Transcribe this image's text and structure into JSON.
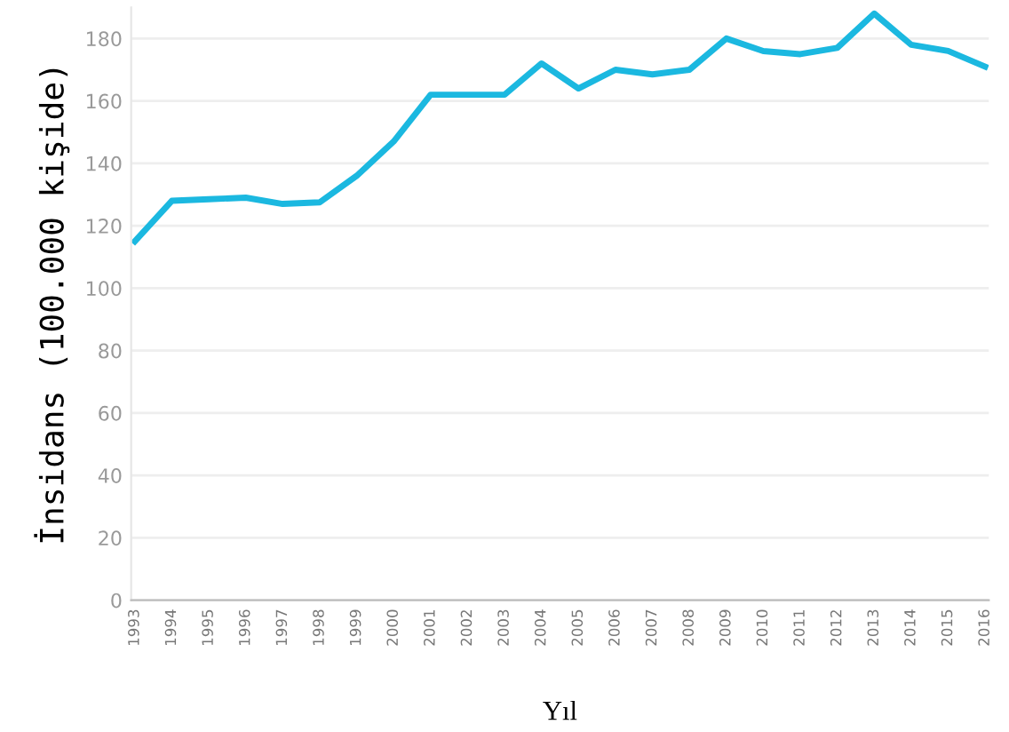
{
  "chart_data": {
    "type": "line",
    "xlabel": "Yıl",
    "ylabel": "İnsidans (100.000 kişide)",
    "categories": [
      "1993",
      "1994",
      "1995",
      "1996",
      "1997",
      "1998",
      "1999",
      "2000",
      "2001",
      "2002",
      "2003",
      "2004",
      "2005",
      "2006",
      "2007",
      "2008",
      "2009",
      "2010",
      "2011",
      "2012",
      "2013",
      "2014",
      "2015",
      "2016"
    ],
    "series": [
      {
        "color": "#1bb8e0",
        "values": [
          115,
          128,
          128.5,
          129,
          127,
          127.5,
          136,
          147,
          162,
          162,
          162,
          172,
          164,
          170,
          168.5,
          170,
          180,
          176,
          175,
          177,
          188,
          178,
          176,
          171
        ]
      }
    ],
    "ylim": [
      0,
      190
    ],
    "yticks": [
      0,
      20,
      40,
      60,
      80,
      100,
      120,
      140,
      160,
      180
    ],
    "grid": "y",
    "marker": "none",
    "line_style": "solid",
    "legend": false
  }
}
